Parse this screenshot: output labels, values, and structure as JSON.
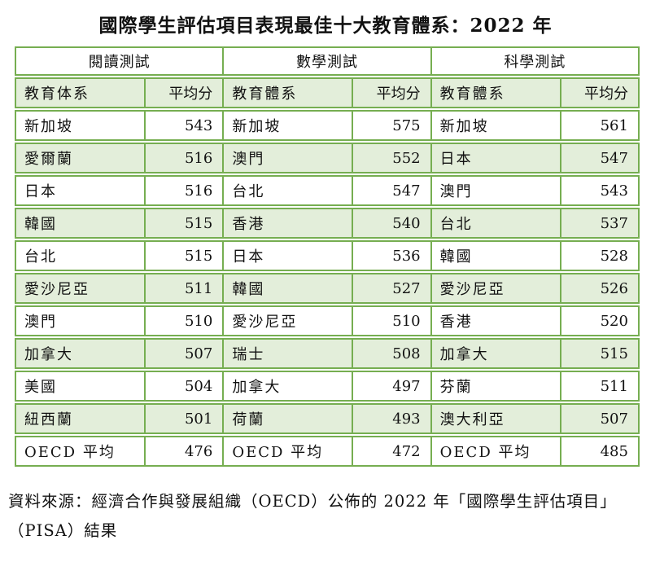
{
  "title": "國際學生評估項目表現最佳十大教育體系：2022 年",
  "table": {
    "groups": [
      {
        "label": "閱讀測試",
        "system_header": "教育体系",
        "score_header": "平均分",
        "rows": [
          {
            "name": "新加坡",
            "score": "543"
          },
          {
            "name": "愛爾蘭",
            "score": "516"
          },
          {
            "name": "日本",
            "score": "516"
          },
          {
            "name": "韓國",
            "score": "515"
          },
          {
            "name": "台北",
            "score": "515"
          },
          {
            "name": "愛沙尼亞",
            "score": "511"
          },
          {
            "name": "澳門",
            "score": "510"
          },
          {
            "name": "加拿大",
            "score": "507"
          },
          {
            "name": "美國",
            "score": "504"
          },
          {
            "name": "紐西蘭",
            "score": "501"
          },
          {
            "name": "OECD 平均",
            "score": "476"
          }
        ]
      },
      {
        "label": "數學測試",
        "system_header": "教育體系",
        "score_header": "平均分",
        "rows": [
          {
            "name": "新加坡",
            "score": "575"
          },
          {
            "name": "澳門",
            "score": "552"
          },
          {
            "name": "台北",
            "score": "547"
          },
          {
            "name": "香港",
            "score": "540"
          },
          {
            "name": "日本",
            "score": "536"
          },
          {
            "name": "韓國",
            "score": "527"
          },
          {
            "name": "愛沙尼亞",
            "score": "510"
          },
          {
            "name": "瑞士",
            "score": "508"
          },
          {
            "name": "加拿大",
            "score": "497"
          },
          {
            "name": "荷蘭",
            "score": "493"
          },
          {
            "name": "OECD 平均",
            "score": "472"
          }
        ]
      },
      {
        "label": "科學測試",
        "system_header": "教育體系",
        "score_header": "平均分",
        "rows": [
          {
            "name": "新加坡",
            "score": "561"
          },
          {
            "name": "日本",
            "score": "547"
          },
          {
            "name": "澳門",
            "score": "543"
          },
          {
            "name": "台北",
            "score": "537"
          },
          {
            "name": "韓國",
            "score": "528"
          },
          {
            "name": "愛沙尼亞",
            "score": "526"
          },
          {
            "name": "香港",
            "score": "520"
          },
          {
            "name": "加拿大",
            "score": "515"
          },
          {
            "name": "芬蘭",
            "score": "511"
          },
          {
            "name": "澳大利亞",
            "score": "507"
          },
          {
            "name": "OECD 平均",
            "score": "485"
          }
        ]
      }
    ]
  },
  "source_note": "資料來源：經濟合作與發展組織（OECD）公佈的 2022 年「國際學生評估項目」（PISA）結果",
  "colors": {
    "border_green": "#76ae51",
    "fill_green": "#e3eeda"
  }
}
